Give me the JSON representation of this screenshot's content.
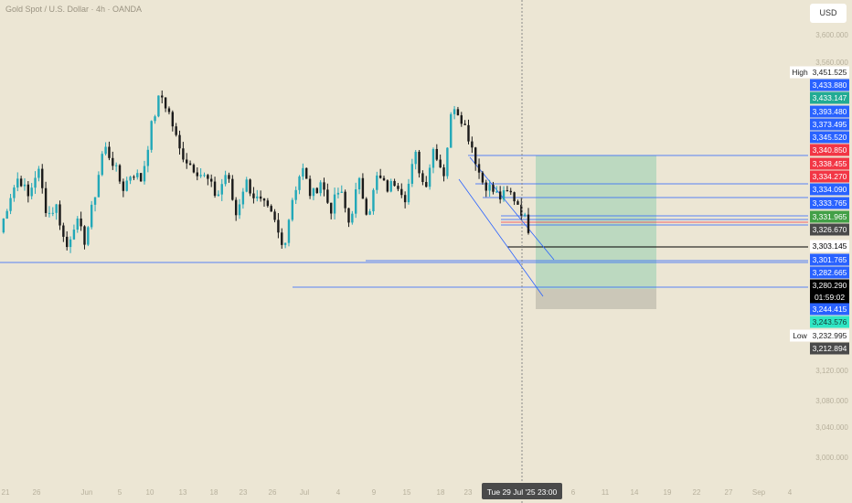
{
  "header": {
    "symbol_title": "Gold Spot / U.S. Dollar · 4h · OANDA",
    "currency_button": "USD"
  },
  "chart_data": {
    "type": "candlestick",
    "symbol": "Gold Spot / U.S. Dollar",
    "timeframe": "4h",
    "source": "OANDA",
    "ylim": [
      2960,
      3640
    ],
    "y_ticks": [
      "3,600.000",
      "3,560.000",
      "3,120.000",
      "3,080.000",
      "3,040.000",
      "3,000.000"
    ],
    "x_ticks": [
      "21",
      "26",
      "Jun",
      "5",
      "10",
      "13",
      "18",
      "23",
      "26",
      "Jul",
      "4",
      "9",
      "15",
      "18",
      "23",
      "6",
      "11",
      "14",
      "19",
      "22",
      "27",
      "Sep",
      "4"
    ],
    "x_cursor_label": "Tue 29 Jul '25   23:00",
    "price_path": [
      3280,
      3320,
      3345,
      3320,
      3355,
      3300,
      3310,
      3260,
      3295,
      3270,
      3320,
      3380,
      3360,
      3330,
      3350,
      3340,
      3400,
      3440,
      3415,
      3375,
      3360,
      3350,
      3340,
      3320,
      3350,
      3300,
      3340,
      3320,
      3310,
      3295,
      3260,
      3320,
      3355,
      3320,
      3340,
      3305,
      3330,
      3290,
      3340,
      3300,
      3345,
      3330,
      3340,
      3320,
      3370,
      3330,
      3380,
      3345,
      3430,
      3410,
      3380,
      3340,
      3330,
      3320,
      3326,
      3312,
      3285
    ],
    "price_labels": [
      {
        "value": "3,451.525",
        "bg": "#ffffff",
        "fg": "#222222",
        "tag": "High"
      },
      {
        "value": "3,433.880",
        "bg": "#2962ff",
        "fg": "#ffffff"
      },
      {
        "value": "3,433.147",
        "bg": "#22ab94",
        "fg": "#ffffff"
      },
      {
        "value": "3,393.480",
        "bg": "#2962ff",
        "fg": "#ffffff"
      },
      {
        "value": "3,373.495",
        "bg": "#2962ff",
        "fg": "#ffffff"
      },
      {
        "value": "3,345.520",
        "bg": "#2962ff",
        "fg": "#ffffff"
      },
      {
        "value": "3,340.850",
        "bg": "#f23645",
        "fg": "#ffffff"
      },
      {
        "value": "3,338.455",
        "bg": "#f23645",
        "fg": "#ffffff"
      },
      {
        "value": "3,334.270",
        "bg": "#f23645",
        "fg": "#ffffff"
      },
      {
        "value": "3,334.090",
        "bg": "#2962ff",
        "fg": "#ffffff"
      },
      {
        "value": "3,333.765",
        "bg": "#2962ff",
        "fg": "#ffffff"
      },
      {
        "value": "3,331.965",
        "bg": "#43a047",
        "fg": "#ffffff"
      },
      {
        "value": "3,326.670",
        "bg": "#4a4a4a",
        "fg": "#ffffff"
      },
      {
        "value": "3,303.145",
        "bg": "#ffffff",
        "fg": "#000000"
      },
      {
        "value": "3,301.765",
        "bg": "#2962ff",
        "fg": "#ffffff"
      },
      {
        "value": "3,282.665",
        "bg": "#2962ff",
        "fg": "#ffffff"
      },
      {
        "value": "3,280.290",
        "bg": "#000000",
        "fg": "#ffffff"
      },
      {
        "value": "01:59:02",
        "bg": "#000000",
        "fg": "#ffffff"
      },
      {
        "value": "3,244.415",
        "bg": "#2962ff",
        "fg": "#ffffff"
      },
      {
        "value": "3,243.576",
        "bg": "#2ee6c4",
        "fg": "#143b34"
      },
      {
        "value": "3,232.995",
        "bg": "#ffffff",
        "fg": "#222222",
        "tag": "Low"
      },
      {
        "value": "3,212.894",
        "bg": "#4a4a4a",
        "fg": "#ffffff"
      }
    ],
    "colors": {
      "background": "#ece6d4",
      "up_candle": "#22a8b8",
      "down_candle": "#1a1a1a",
      "drawing_lines": "#2962ff",
      "profit_zone": "#bcd9c0",
      "loss_zone": "#cbc7b8"
    }
  }
}
